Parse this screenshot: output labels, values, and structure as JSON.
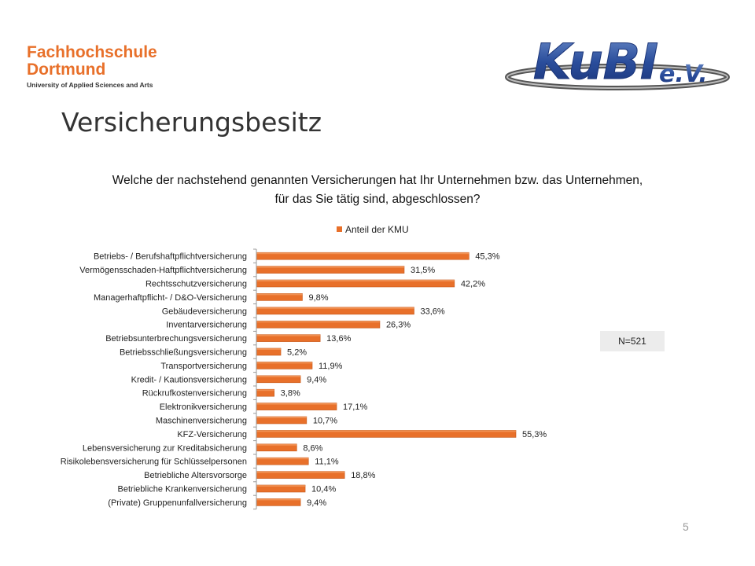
{
  "header": {
    "fh_line1": "Fachhochschule",
    "fh_line2": "Dortmund",
    "fh_line3": "University of Applied Sciences and Arts",
    "kubi_main": "KuBI",
    "kubi_suffix": "e.V."
  },
  "slide": {
    "title": "Versicherungsbesitz",
    "question": "Welche der nachstehend genannten Versicherungen hat Ihr Unternehmen bzw. das Unternehmen,  für das Sie tätig sind, abgeschlossen?",
    "n_label": "N=521",
    "page_number": "5"
  },
  "colors": {
    "accent": "#e8702a",
    "bar": "#e8702a"
  },
  "chart_data": {
    "type": "bar",
    "orientation": "horizontal",
    "legend": {
      "position": "top",
      "entries": [
        "Anteil der KMU"
      ]
    },
    "categories": [
      "Betriebs- / Berufshaftpflichtversicherung",
      "Vermögensschaden-Haftpflichtversicherung",
      "Rechtsschutzversicherung",
      "Managerhaftpflicht- / D&O-Versicherung",
      "Gebäudeversicherung",
      "Inventarversicherung",
      "Betriebsunterbrechungsversicherung",
      "Betriebsschließungsversicherung",
      "Transportversicherung",
      "Kredit- / Kautionsversicherung",
      "Rückrufkostenversicherung",
      "Elektronikversicherung",
      "Maschinenversicherung",
      "KFZ-Versicherung",
      "Lebensversicherung zur Kreditabsicherung",
      "Risikolebensversicherung für Schlüsselpersonen",
      "Betriebliche Altersvorsorge",
      "Betriebliche Krankenversicherung",
      "(Private) Gruppenunfallversicherung"
    ],
    "series": [
      {
        "name": "Anteil der KMU",
        "values": [
          45.3,
          31.5,
          42.2,
          9.8,
          33.6,
          26.3,
          13.6,
          5.2,
          11.9,
          9.4,
          3.8,
          17.1,
          10.7,
          55.3,
          8.6,
          11.1,
          18.8,
          10.4,
          9.4
        ],
        "labels": [
          "45,3%",
          "31,5%",
          "42,2%",
          "9,8%",
          "33,6%",
          "26,3%",
          "13,6%",
          "5,2%",
          "11,9%",
          "9,4%",
          "3,8%",
          "17,1%",
          "10,7%",
          "55,3%",
          "8,6%",
          "11,1%",
          "18,8%",
          "10,4%",
          "9,4%"
        ]
      }
    ],
    "xlim": [
      0,
      60
    ],
    "grid": false
  }
}
